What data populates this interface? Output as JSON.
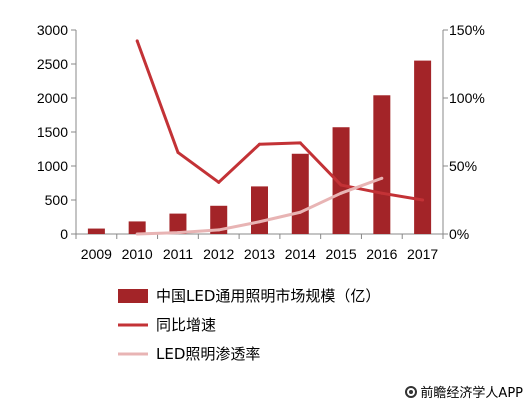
{
  "chart_data": {
    "type": "bar",
    "categories": [
      "2009",
      "2010",
      "2011",
      "2012",
      "2013",
      "2014",
      "2015",
      "2016",
      "2017"
    ],
    "series": [
      {
        "name": "中国LED通用照明市场规模（亿）",
        "kind": "bar",
        "axis": "left",
        "color": "#a32428",
        "values": [
          80,
          185,
          300,
          415,
          700,
          1180,
          1570,
          2040,
          2550
        ]
      },
      {
        "name": "同比增速",
        "kind": "line",
        "axis": "right",
        "color": "#c33236",
        "x": [
          "2010",
          "2011",
          "2012",
          "2013",
          "2014",
          "2015",
          "2016",
          "2017"
        ],
        "values": [
          142,
          60,
          38,
          66,
          67,
          36,
          30,
          25
        ]
      },
      {
        "name": "LED照明渗透率",
        "kind": "line",
        "axis": "right",
        "color": "#e8b4b4",
        "x": [
          "2010",
          "2011",
          "2012",
          "2013",
          "2014",
          "2015",
          "2016",
          "2017"
        ],
        "values": [
          0,
          1,
          3,
          9,
          16,
          30,
          41,
          null
        ]
      }
    ],
    "y_left": {
      "lim": [
        0,
        3000
      ],
      "ticks": [
        "0",
        "500",
        "1000",
        "1500",
        "2000",
        "2500",
        "3000"
      ]
    },
    "y_right": {
      "lim": [
        0,
        150
      ],
      "ticks": [
        "0%",
        "50%",
        "100%",
        "150%"
      ]
    },
    "grid": false,
    "legend_position": "bottom"
  },
  "source": "前瞻经济学人APP"
}
